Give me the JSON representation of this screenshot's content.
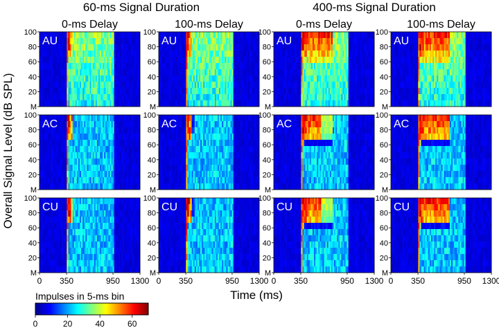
{
  "chart_data": {
    "type": "heatmap",
    "column_groups": [
      {
        "title": "60-ms Signal Duration",
        "signal_duration_ms": 60
      },
      {
        "title": "400-ms Signal Duration",
        "signal_duration_ms": 400
      }
    ],
    "columns": [
      {
        "title": "0-ms Delay",
        "signal_duration_ms": 60,
        "delay_ms": 0
      },
      {
        "title": "100-ms Delay",
        "signal_duration_ms": 60,
        "delay_ms": 100
      },
      {
        "title": "0-ms Delay",
        "signal_duration_ms": 400,
        "delay_ms": 0
      },
      {
        "title": "100-ms Delay",
        "signal_duration_ms": 400,
        "delay_ms": 100
      }
    ],
    "rows": [
      "AU",
      "AC",
      "CU"
    ],
    "xlabel": "Time (ms)",
    "ylabel": "Overall Signal Level (dB SPL)",
    "xlim": [
      0,
      1300
    ],
    "x_ticks": [
      0,
      350,
      950,
      1300
    ],
    "y_ticks": [
      "100",
      "80",
      "60",
      "40",
      "20",
      "M"
    ],
    "y_levels": [
      100,
      80,
      60,
      40,
      20,
      0
    ],
    "colorbar": {
      "title": "Impulses in 5-ms bin",
      "range": [
        0,
        70
      ],
      "ticks": [
        0,
        20,
        40,
        60
      ]
    },
    "response_window_ms": [
      350,
      950
    ],
    "onset_ms": 350,
    "colors": {
      "c0": "#00008f",
      "c1": "#0000ff",
      "c2": "#00ffff",
      "c3": "#ffff00",
      "c4": "#ff0000",
      "c5": "#800000"
    }
  }
}
